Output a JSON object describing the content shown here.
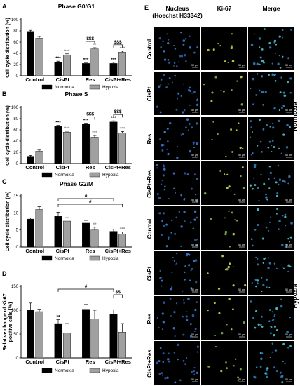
{
  "chart_data": [
    {
      "type": "bar",
      "panel": "A",
      "title": "Phase G0/G1",
      "ylabel": "Cell cycle distribution (%)",
      "ylim": [
        0,
        100
      ],
      "yticks": [
        0,
        20,
        40,
        60,
        80,
        100
      ],
      "categories": [
        "Control",
        "CisPt",
        "Res",
        "CisPt+Res"
      ],
      "series": [
        {
          "name": "Normoxia",
          "color": "#000000",
          "values": [
            79,
            24,
            22,
            22
          ],
          "errors": [
            2,
            2,
            1.5,
            2
          ]
        },
        {
          "name": "Hypoxia",
          "color": "#a0a0a0",
          "values": [
            67,
            37,
            48,
            42
          ],
          "errors": [
            3,
            2,
            2,
            2
          ]
        }
      ],
      "labels_normoxia": [
        "",
        "***",
        "***",
        "***"
      ],
      "labels_hypoxia": [
        "",
        "***",
        "**",
        "***"
      ],
      "brackets": [
        {
          "from": "Res-Normoxia",
          "to": "Res-Hypoxia",
          "label": "$$$"
        },
        {
          "from": "CisPt+Res-Normoxia",
          "to": "CisPt+Res-Hypoxia",
          "label": "$$$"
        }
      ],
      "legend_position": "bottom"
    },
    {
      "type": "bar",
      "panel": "B",
      "title": "Phase S",
      "ylabel": "Cell cycle distribution (%)",
      "ylim": [
        0,
        100
      ],
      "yticks": [
        0,
        20,
        40,
        60,
        80,
        100
      ],
      "categories": [
        "Control",
        "CisPt",
        "Res",
        "CisPt+Res"
      ],
      "series": [
        {
          "name": "Normoxia",
          "color": "#000000",
          "values": [
            13,
            66,
            70,
            74
          ],
          "errors": [
            1.5,
            2,
            2,
            2
          ]
        },
        {
          "name": "Hypoxia",
          "color": "#a0a0a0",
          "values": [
            22,
            56,
            47,
            54
          ],
          "errors": [
            2,
            1.5,
            3,
            3
          ]
        }
      ],
      "labels_normoxia": [
        "",
        "***",
        "***",
        "***"
      ],
      "labels_hypoxia": [
        "",
        "***",
        "***",
        "***"
      ],
      "brackets": [
        {
          "from": "Res-Normoxia",
          "to": "Res-Hypoxia",
          "label": "$$$"
        },
        {
          "from": "CisPt+Res-Normoxia",
          "to": "CisPt+Res-Hypoxia",
          "label": "$$$"
        }
      ],
      "legend_position": "bottom"
    },
    {
      "type": "bar",
      "panel": "C",
      "title": "Phase G2/M",
      "ylabel": "Cell cycle distribution (%)",
      "ylim": [
        0,
        15
      ],
      "yticks": [
        0,
        5,
        10,
        15
      ],
      "categories": [
        "Control",
        "CisPt",
        "Res",
        "CisPt+Res"
      ],
      "series": [
        {
          "name": "Normoxia",
          "color": "#000000",
          "values": [
            8.2,
            9,
            7,
            4.6
          ],
          "errors": [
            0.3,
            1.2,
            0.8,
            0.6
          ]
        },
        {
          "name": "Hypoxia",
          "color": "#a0a0a0",
          "values": [
            11,
            7.6,
            5,
            3.8
          ],
          "errors": [
            0.8,
            1.0,
            0.8,
            0.6
          ]
        }
      ],
      "labels_normoxia": [
        "",
        "",
        "",
        ""
      ],
      "labels_hypoxia": [
        "",
        "",
        "**",
        "***"
      ],
      "brackets": [
        {
          "from": "CisPt-Normoxia",
          "to": "CisPt+Res-Normoxia",
          "label": "#"
        },
        {
          "from": "CisPt-Normoxia",
          "to": "CisPt+Res-Hypoxia",
          "label": "#"
        }
      ],
      "legend_position": "bottom"
    },
    {
      "type": "bar",
      "panel": "D",
      "title": "",
      "ylabel": "Relative change of Ki-67 positive cells (%)",
      "ylim": [
        0,
        150
      ],
      "yticks": [
        0,
        50,
        100,
        150
      ],
      "categories": [
        "Control",
        "CisPt",
        "Res",
        "CisPt+Res"
      ],
      "series": [
        {
          "name": "Normoxia",
          "color": "#000000",
          "values": [
            100,
            72,
            102,
            92
          ],
          "errors": [
            15,
            8,
            10,
            9
          ]
        },
        {
          "name": "Hypoxia",
          "color": "#a0a0a0",
          "values": [
            97,
            52,
            82,
            54
          ],
          "errors": [
            5,
            20,
            18,
            18
          ]
        }
      ],
      "labels_normoxia": [
        "",
        "**",
        "",
        ""
      ],
      "labels_hypoxia": [
        "",
        "",
        "",
        ""
      ],
      "brackets": [
        {
          "from": "CisPt-Normoxia",
          "to": "CisPt+Res-Normoxia",
          "label": "#"
        },
        {
          "from": "CisPt+Res-Normoxia",
          "to": "CisPt+Res-Hypoxia",
          "label": "$$"
        }
      ],
      "legend_position": "bottom"
    }
  ],
  "panel_e": {
    "letter": "E",
    "columns": [
      "Nucleus\n(Hoechst H33342)",
      "Ki-67",
      "Merge"
    ],
    "rows": [
      "Control",
      "CisPt",
      "Res",
      "CisPt+Res",
      "Control",
      "CisPt",
      "Res",
      "CisPt+Res"
    ],
    "groups": [
      "Normoxia",
      "Hypoxia"
    ],
    "scale_bar": "50 µm"
  }
}
